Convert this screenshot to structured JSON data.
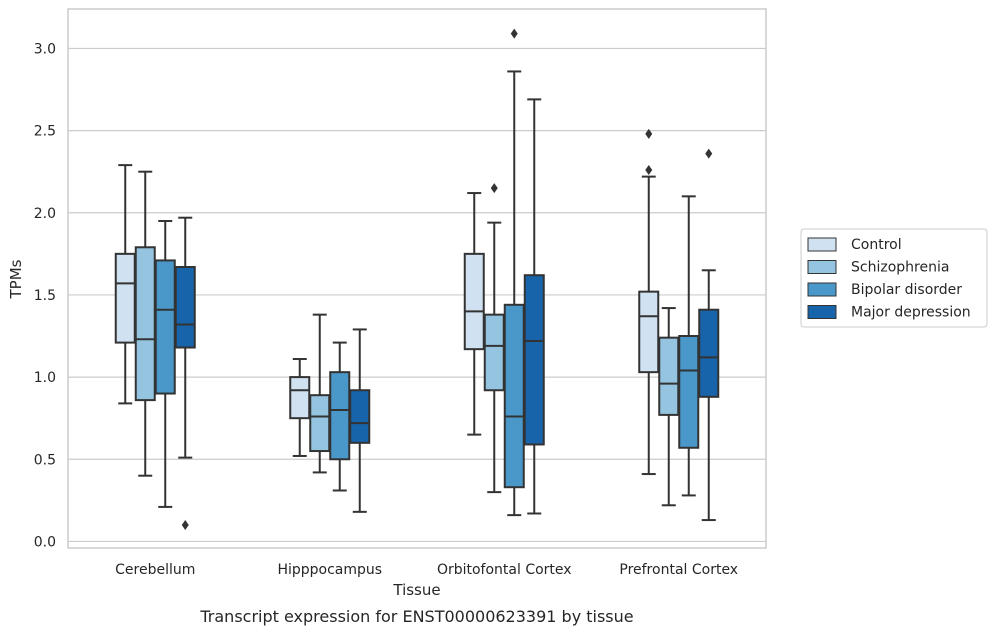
{
  "chart_data": {
    "type": "box",
    "xlabel": "Tissue",
    "ylabel": "TPMs",
    "caption": "Transcript expression for ENST00000623391 by tissue",
    "ylim": [
      -0.04,
      3.24
    ],
    "yticks": [
      0.0,
      0.5,
      1.0,
      1.5,
      2.0,
      2.5,
      3.0
    ],
    "ytick_labels": [
      "0.0",
      "0.5",
      "1.0",
      "1.5",
      "2.0",
      "2.5",
      "3.0"
    ],
    "grid": true,
    "legend_position": "right-outside",
    "categories": [
      "Cerebellum",
      "Hipppocampus",
      "Orbitofontal Cortex",
      "Prefrontal Cortex"
    ],
    "series": [
      {
        "name": "Control",
        "color": "#d0e1f2",
        "boxes": [
          {
            "whislo": 0.84,
            "q1": 1.21,
            "med": 1.57,
            "q3": 1.75,
            "whishi": 2.29,
            "fliers": []
          },
          {
            "whislo": 0.52,
            "q1": 0.75,
            "med": 0.92,
            "q3": 1.0,
            "whishi": 1.11,
            "fliers": []
          },
          {
            "whislo": 0.65,
            "q1": 1.17,
            "med": 1.4,
            "q3": 1.75,
            "whishi": 2.12,
            "fliers": []
          },
          {
            "whislo": 0.41,
            "q1": 1.03,
            "med": 1.37,
            "q3": 1.52,
            "whishi": 2.22,
            "fliers": [
              2.26,
              2.48
            ]
          }
        ]
      },
      {
        "name": "Schizophrenia",
        "color": "#94c4df",
        "boxes": [
          {
            "whislo": 0.4,
            "q1": 0.86,
            "med": 1.23,
            "q3": 1.79,
            "whishi": 2.25,
            "fliers": []
          },
          {
            "whislo": 0.42,
            "q1": 0.55,
            "med": 0.76,
            "q3": 0.89,
            "whishi": 1.38,
            "fliers": []
          },
          {
            "whislo": 0.3,
            "q1": 0.92,
            "med": 1.19,
            "q3": 1.38,
            "whishi": 1.94,
            "fliers": [
              2.15
            ]
          },
          {
            "whislo": 0.22,
            "q1": 0.77,
            "med": 0.96,
            "q3": 1.24,
            "whishi": 1.42,
            "fliers": []
          }
        ]
      },
      {
        "name": "Bipolar disorder",
        "color": "#4a98c9",
        "boxes": [
          {
            "whislo": 0.21,
            "q1": 0.9,
            "med": 1.41,
            "q3": 1.71,
            "whishi": 1.95,
            "fliers": []
          },
          {
            "whislo": 0.31,
            "q1": 0.5,
            "med": 0.8,
            "q3": 1.03,
            "whishi": 1.21,
            "fliers": []
          },
          {
            "whislo": 0.16,
            "q1": 0.33,
            "med": 0.76,
            "q3": 1.44,
            "whishi": 2.86,
            "fliers": [
              3.09
            ]
          },
          {
            "whislo": 0.28,
            "q1": 0.57,
            "med": 1.04,
            "q3": 1.25,
            "whishi": 2.1,
            "fliers": []
          }
        ]
      },
      {
        "name": "Major depression",
        "color": "#1764ab",
        "boxes": [
          {
            "whislo": 0.51,
            "q1": 1.18,
            "med": 1.32,
            "q3": 1.67,
            "whishi": 1.97,
            "fliers": [
              0.1
            ]
          },
          {
            "whislo": 0.18,
            "q1": 0.6,
            "med": 0.72,
            "q3": 0.92,
            "whishi": 1.29,
            "fliers": []
          },
          {
            "whislo": 0.17,
            "q1": 0.59,
            "med": 1.22,
            "q3": 1.62,
            "whishi": 2.69,
            "fliers": []
          },
          {
            "whislo": 0.13,
            "q1": 0.88,
            "med": 1.12,
            "q3": 1.41,
            "whishi": 1.65,
            "fliers": [
              2.36
            ]
          }
        ]
      }
    ]
  }
}
